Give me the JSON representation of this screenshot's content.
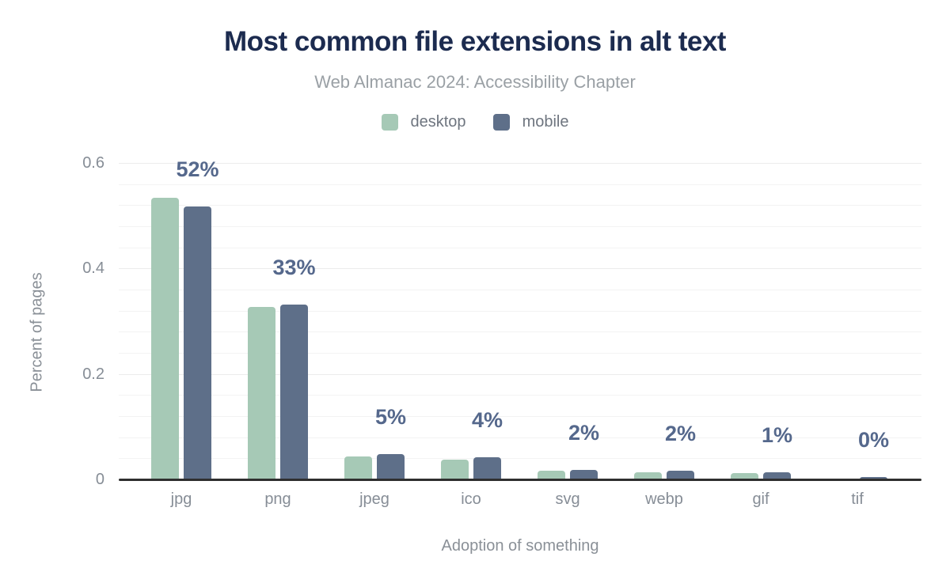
{
  "chart_data": {
    "type": "bar",
    "title": "Most common file extensions in alt text",
    "subtitle": "Web Almanac 2024: Accessibility Chapter",
    "categories": [
      "jpg",
      "png",
      "jpeg",
      "ico",
      "svg",
      "webp",
      "gif",
      "tif"
    ],
    "series": [
      {
        "name": "desktop",
        "color": "#a6c9b6",
        "values": [
          0.534,
          0.327,
          0.043,
          0.038,
          0.017,
          0.014,
          0.012,
          0.0005
        ]
      },
      {
        "name": "mobile",
        "color": "#5e6f89",
        "values": [
          0.518,
          0.332,
          0.048,
          0.042,
          0.018,
          0.017,
          0.013,
          0.004
        ]
      }
    ],
    "data_labels": [
      "52%",
      "33%",
      "5%",
      "4%",
      "2%",
      "2%",
      "1%",
      "0%"
    ],
    "xlabel": "Adoption of something",
    "ylabel": "Percent of pages",
    "yticks": [
      "0",
      "0.2",
      "0.4",
      "0.6"
    ],
    "ytick_values": [
      0,
      0.2,
      0.4,
      0.6
    ],
    "ylim": [
      0,
      0.62
    ],
    "grid": true,
    "minor_grid_step": 0.04,
    "legend_position": "top",
    "label_color": "#55688c",
    "title_color": "#1c2b4f",
    "axis_text_color": "#868d96"
  }
}
